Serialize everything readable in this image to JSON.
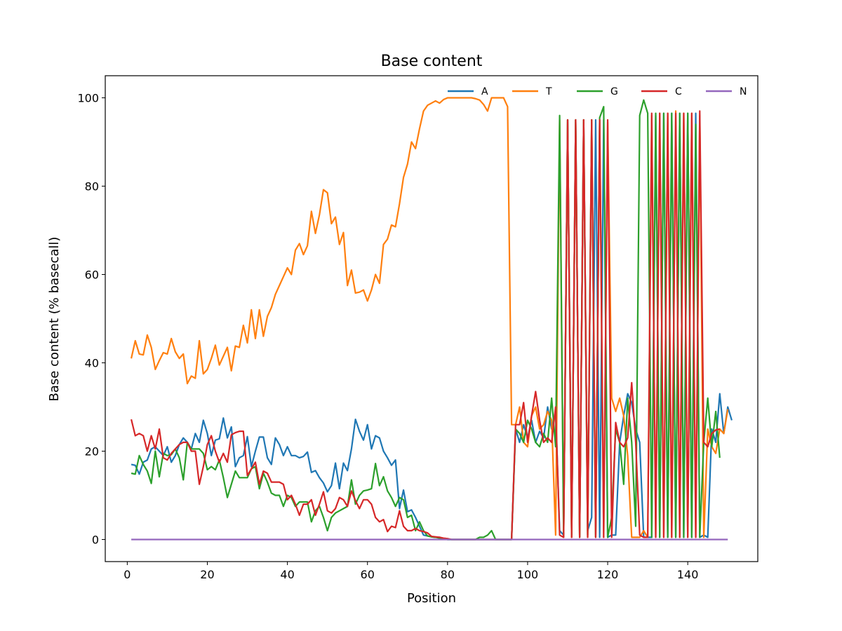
{
  "chart_data": {
    "type": "line",
    "title": "Base content",
    "xlabel": "Position",
    "ylabel": "Base content (% basecall)",
    "xlim": [
      -5.5,
      157.5
    ],
    "ylim": [
      -5,
      105
    ],
    "xticks": [
      0,
      20,
      40,
      60,
      80,
      100,
      120,
      140
    ],
    "yticks": [
      0,
      20,
      40,
      60,
      80,
      100
    ],
    "grid": false,
    "legend_position": "top-right",
    "x_start": 1,
    "series": [
      {
        "name": "A",
        "color": "#1f77b4",
        "values": [
          17,
          16.8,
          14.8,
          17.5,
          18,
          20.5,
          21,
          20,
          19,
          21,
          17.5,
          19,
          21.5,
          23,
          22,
          20.5,
          24,
          22,
          27,
          24,
          19,
          22.5,
          22.8,
          27.5,
          23,
          25.5,
          16.5,
          18.5,
          19,
          23.3,
          16.5,
          20,
          23.2,
          23.2,
          18.5,
          17,
          23,
          21.5,
          19,
          21,
          19,
          19,
          18.5,
          18.8,
          19.8,
          15.2,
          15.6,
          14,
          12.8,
          10.8,
          12.2,
          17.3,
          11.5,
          17.3,
          15.6,
          20.5,
          27.2,
          24.5,
          22.5,
          26,
          20.5,
          23.5,
          23,
          20,
          18.5,
          16.8,
          18,
          7,
          11.2,
          6.3,
          6.7,
          5,
          3,
          1,
          0.8,
          0.6,
          0.5,
          0.5,
          0.2,
          0,
          0,
          0,
          0,
          0,
          0,
          0,
          0,
          0,
          0,
          0,
          0,
          0,
          0,
          0,
          0,
          0,
          25,
          22,
          26,
          23,
          27,
          22,
          24.5,
          23,
          30,
          25,
          29,
          2,
          1,
          95,
          0.5,
          95,
          0.5,
          95,
          2,
          5,
          95,
          0.5,
          95,
          0.5,
          1,
          1,
          22,
          28,
          33,
          31,
          25,
          22,
          0.5,
          0.5,
          0.5,
          96,
          0.5,
          96.5,
          0.5,
          96.5,
          0.5,
          96.5,
          0.5,
          96.5,
          0.5,
          96.5,
          0.5,
          1,
          0.5,
          25,
          22,
          33,
          24,
          30,
          27
        ]
      },
      {
        "name": "T",
        "color": "#ff7f0e",
        "values": [
          41,
          45,
          42,
          41.8,
          46.3,
          43.5,
          38.5,
          40.5,
          42.3,
          42,
          45.5,
          42.5,
          41,
          42,
          35.3,
          37,
          36.5,
          45,
          37.5,
          38.5,
          41,
          44,
          39.5,
          41.5,
          43.5,
          38.2,
          43.8,
          43.5,
          48.5,
          44.5,
          52,
          45.5,
          52,
          46,
          50.5,
          52.5,
          55.5,
          57.5,
          59.5,
          61.5,
          60,
          65.5,
          67,
          64.5,
          66.5,
          74.3,
          69.3,
          73.5,
          79.2,
          78.5,
          71.5,
          73,
          66.8,
          69.5,
          57.5,
          61,
          55.8,
          56,
          56.5,
          54,
          56.5,
          60,
          58,
          66.8,
          68,
          71.2,
          70.8,
          76,
          82,
          85,
          90,
          88.5,
          93,
          97,
          98.3,
          98.8,
          99.3,
          98.8,
          99.6,
          100,
          100,
          100,
          100,
          100,
          100,
          100,
          99.8,
          99.5,
          98.5,
          97,
          100,
          100,
          100,
          100,
          98,
          26,
          26,
          30,
          22,
          21,
          28,
          30,
          25,
          26,
          29,
          27,
          1,
          95,
          0.5,
          95,
          0.5,
          95,
          0.5,
          95,
          0.5,
          95,
          0.5,
          95,
          0.5,
          94.5,
          32,
          29,
          32,
          28,
          19,
          0.5,
          0.5,
          0.5,
          2,
          0.5,
          96,
          0.5,
          96.5,
          0.5,
          96.5,
          0.5,
          97,
          0.5,
          96.5,
          0.5,
          96.5,
          0.5,
          96,
          0.5,
          25,
          21,
          19.5,
          25,
          24,
          29.5
        ]
      },
      {
        "name": "G",
        "color": "#2ca02c",
        "values": [
          15,
          14.8,
          19,
          17,
          15.5,
          12.7,
          20,
          14.2,
          19.5,
          19,
          19.2,
          20.5,
          18.5,
          13.5,
          22,
          20.5,
          20.5,
          20.5,
          19.5,
          15.8,
          16.5,
          15.8,
          18,
          14,
          9.5,
          12.5,
          15.5,
          14,
          14,
          14,
          16,
          16.5,
          11.5,
          15,
          13,
          10.5,
          10,
          10,
          7.5,
          10,
          9.5,
          7.5,
          8.5,
          8.5,
          8.5,
          4,
          6.5,
          7.5,
          5,
          2,
          5,
          6,
          6.5,
          7,
          7.5,
          13.5,
          8,
          10,
          11,
          11.2,
          11.5,
          17.2,
          12.2,
          14.2,
          11,
          9.5,
          7.5,
          9.5,
          9,
          5,
          5.5,
          2,
          4,
          2,
          0.8,
          0.6,
          0.5,
          0.3,
          0.2,
          0,
          0,
          0,
          0,
          0,
          0,
          0,
          0,
          0.5,
          0.5,
          1,
          2,
          0,
          0,
          0,
          0,
          0,
          25,
          24,
          22,
          27,
          25,
          22,
          21,
          24,
          22,
          32,
          21,
          96,
          1,
          95,
          1,
          95,
          0.5,
          95,
          1,
          95,
          0.5,
          95.5,
          98,
          0.5,
          5,
          25,
          22,
          12.5,
          32,
          22,
          3,
          96,
          99.5,
          96.5,
          0.5,
          96.5,
          0.5,
          96.5,
          0.5,
          96.5,
          0.5,
          96.5,
          0.5,
          96.5,
          0.5,
          94,
          0.5,
          22,
          32,
          21,
          29,
          18.5
        ]
      },
      {
        "name": "C",
        "color": "#d62728",
        "values": [
          27.2,
          23.5,
          24,
          23.5,
          20,
          23.5,
          20.5,
          25,
          18.5,
          18,
          19.5,
          20.5,
          21.5,
          22,
          22,
          20,
          20,
          12.5,
          16.5,
          21.5,
          23.5,
          20,
          17.5,
          19.5,
          17.5,
          23.7,
          24.2,
          24.5,
          24.5,
          14.5,
          16,
          17.5,
          12.5,
          15.5,
          15,
          13,
          13,
          13,
          12.5,
          9,
          10,
          8,
          5.5,
          8,
          8,
          9,
          5.5,
          8,
          10.8,
          6.5,
          6,
          7,
          9.5,
          9,
          7.5,
          11,
          8.8,
          7,
          9,
          9,
          8,
          5,
          4,
          4.5,
          1.8,
          3,
          2.7,
          6.5,
          3,
          2,
          2,
          2.5,
          2,
          1.8,
          1.5,
          0.7,
          0.6,
          0.5,
          0.3,
          0.2,
          0,
          0,
          0,
          0,
          0,
          0,
          0,
          0,
          0,
          0,
          0,
          0,
          0,
          0,
          0,
          0,
          26,
          26,
          31,
          22,
          28,
          33.5,
          27,
          22,
          23,
          22,
          30,
          1,
          0.5,
          95,
          0.5,
          95,
          0.5,
          95,
          0.5,
          95,
          0.5,
          95,
          0.5,
          95,
          0.5,
          26.5,
          22,
          21,
          23,
          35.5,
          22,
          1,
          0.5,
          0.5,
          96.5,
          0.5,
          96.5,
          0.5,
          96.5,
          0.5,
          96.5,
          0.5,
          96.5,
          0.5,
          96.5,
          0.5,
          97,
          22,
          21,
          24,
          24.8,
          25
        ]
      },
      {
        "name": "N",
        "color": "#9467bd",
        "values": [
          0,
          0,
          0,
          0,
          0,
          0,
          0,
          0,
          0,
          0,
          0,
          0,
          0,
          0,
          0,
          0,
          0,
          0,
          0,
          0,
          0,
          0,
          0,
          0,
          0,
          0,
          0,
          0,
          0,
          0,
          0,
          0,
          0,
          0,
          0,
          0,
          0,
          0,
          0,
          0,
          0,
          0,
          0,
          0,
          0,
          0,
          0,
          0,
          0,
          0,
          0,
          0,
          0,
          0,
          0,
          0,
          0,
          0,
          0,
          0,
          0,
          0,
          0,
          0,
          0,
          0,
          0,
          0,
          0,
          0,
          0,
          0,
          0,
          0,
          0,
          0,
          0,
          0,
          0,
          0,
          0,
          0,
          0,
          0,
          0,
          0,
          0,
          0,
          0,
          0,
          0,
          0,
          0,
          0,
          0,
          0,
          0,
          0,
          0,
          0,
          0,
          0,
          0,
          0,
          0,
          0,
          0,
          0,
          0,
          0,
          0,
          0,
          0,
          0,
          0,
          0,
          0,
          0,
          0,
          0,
          0,
          0,
          0,
          0,
          0,
          0,
          0,
          0,
          0,
          0,
          0,
          0,
          0,
          0,
          0,
          0,
          0,
          0,
          0,
          0,
          0,
          0,
          0,
          0,
          0,
          0,
          0,
          0,
          0,
          0
        ]
      }
    ]
  }
}
